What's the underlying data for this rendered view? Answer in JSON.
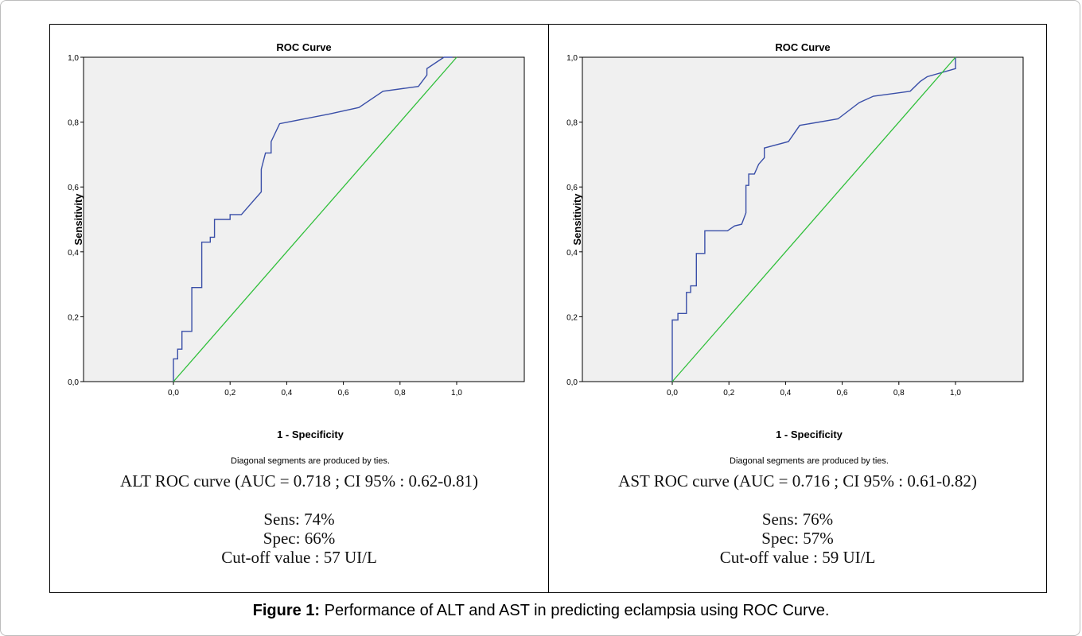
{
  "chart_data": [
    {
      "type": "line",
      "title": "ROC Curve",
      "xlabel": "1 - Specificity",
      "ylabel": "Sensitivity",
      "footnote": "Diagonal segments are produced by ties.",
      "xlim": [
        0,
        1
      ],
      "ylim": [
        0,
        1
      ],
      "xticks": [
        "0,0",
        "0,2",
        "0,4",
        "0,6",
        "0,8",
        "1,0"
      ],
      "yticks": [
        "0,0",
        "0,2",
        "0,4",
        "0,6",
        "0,8",
        "1,0"
      ],
      "grid": false,
      "colors": {
        "curve": "#3a4fa8",
        "reference": "#2fbf3a",
        "plot_bg": "#f0f0f0"
      },
      "series": [
        {
          "role": "curve",
          "x": [
            0,
            0,
            0.015,
            0.015,
            0.03,
            0.03,
            0.035,
            0.035,
            0.065,
            0.065,
            0.1,
            0.1,
            0.13,
            0.13,
            0.145,
            0.145,
            0.2,
            0.2,
            0.24,
            0.31,
            0.31,
            0.325,
            0.345,
            0.345,
            0.375,
            0.55,
            0.655,
            0.74,
            0.865,
            0.895,
            0.895,
            0.955,
            0.985
          ],
          "y": [
            0,
            0.07,
            0.07,
            0.1,
            0.1,
            0.155,
            0.155,
            0.155,
            0.155,
            0.29,
            0.29,
            0.43,
            0.43,
            0.445,
            0.445,
            0.5,
            0.5,
            0.515,
            0.515,
            0.585,
            0.655,
            0.705,
            0.705,
            0.74,
            0.795,
            0.825,
            0.845,
            0.895,
            0.91,
            0.945,
            0.965,
            1,
            1
          ]
        },
        {
          "role": "reference",
          "x": [
            0,
            1
          ],
          "y": [
            0,
            1
          ]
        }
      ]
    },
    {
      "type": "line",
      "title": "ROC Curve",
      "xlabel": "1 - Specificity",
      "ylabel": "Sensitivity",
      "footnote": "Diagonal segments are produced by ties.",
      "xlim": [
        0,
        1
      ],
      "ylim": [
        0,
        1
      ],
      "xticks": [
        "0,0",
        "0,2",
        "0,4",
        "0,6",
        "0,8",
        "1,0"
      ],
      "yticks": [
        "0,0",
        "0,2",
        "0,4",
        "0,6",
        "0,8",
        "1,0"
      ],
      "grid": false,
      "colors": {
        "curve": "#3a4fa8",
        "reference": "#2fbf3a",
        "plot_bg": "#f0f0f0"
      },
      "series": [
        {
          "role": "curve",
          "x": [
            0,
            0,
            0.02,
            0.02,
            0.05,
            0.05,
            0.065,
            0.065,
            0.085,
            0.085,
            0.115,
            0.115,
            0.195,
            0.22,
            0.245,
            0.26,
            0.26,
            0.27,
            0.27,
            0.29,
            0.305,
            0.325,
            0.325,
            0.41,
            0.45,
            0.585,
            0.66,
            0.71,
            0.84,
            0.875,
            0.9,
            1,
            1
          ],
          "y": [
            0,
            0.19,
            0.19,
            0.21,
            0.21,
            0.275,
            0.275,
            0.295,
            0.295,
            0.395,
            0.395,
            0.465,
            0.465,
            0.48,
            0.485,
            0.52,
            0.605,
            0.605,
            0.64,
            0.64,
            0.67,
            0.69,
            0.72,
            0.74,
            0.79,
            0.81,
            0.86,
            0.88,
            0.895,
            0.925,
            0.94,
            0.965,
            1
          ]
        },
        {
          "role": "reference",
          "x": [
            0,
            1
          ],
          "y": [
            0,
            1
          ]
        }
      ]
    }
  ],
  "panels": [
    {
      "auc_text": "ALT ROC curve (AUC = 0.718 ; CI 95% : 0.62-0.81)",
      "sens": "Sens: 74%",
      "spec": "Spec: 66%",
      "cutoff": "Cut-off value : 57 UI/L"
    },
    {
      "auc_text": "AST ROC curve (AUC = 0.716 ; CI 95% : 0.61-0.82)",
      "sens": "Sens: 76%",
      "spec": "Spec: 57%",
      "cutoff": "Cut-off value : 59 UI/L"
    }
  ],
  "figure_caption": {
    "label": "Figure 1:",
    "text": " Performance of ALT and AST in predicting eclampsia using ROC Curve."
  }
}
